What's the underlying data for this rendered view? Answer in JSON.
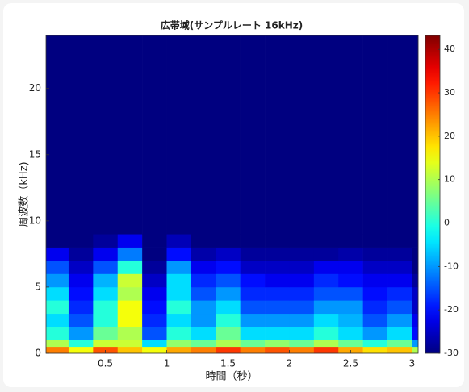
{
  "chart_data": {
    "type": "heatmap",
    "title": "広帯域(サンプルレート 16kHz)",
    "x_label": "時間（秒）",
    "y_label": "周波数（kHz)",
    "xlim": [
      0.016,
      3.05
    ],
    "ylim": [
      0,
      24
    ],
    "xticks": [
      0.5,
      1,
      1.5,
      2,
      2.5,
      3
    ],
    "yticks": [
      0,
      5,
      10,
      15,
      20
    ],
    "clim": [
      -30,
      43.2
    ],
    "cticks": [
      -30,
      -20,
      -10,
      0,
      10,
      20,
      30,
      40
    ],
    "colormap": "jet",
    "x_edges": [
      0.016,
      0.2,
      0.4,
      0.6,
      0.8,
      1.0,
      1.2,
      1.4,
      1.6,
      1.8,
      2.0,
      2.2,
      2.4,
      2.6,
      2.8,
      3.0,
      3.05
    ],
    "y_edges": [
      0,
      0.5,
      1,
      2,
      3,
      4,
      5,
      6,
      7,
      8,
      9,
      24
    ],
    "z": [
      [
        25,
        15,
        28,
        20,
        15,
        22,
        25,
        30,
        25,
        28,
        25,
        30,
        22,
        18,
        20,
        10
      ],
      [
        10,
        0,
        12,
        12,
        -5,
        8,
        5,
        10,
        5,
        8,
        5,
        10,
        5,
        0,
        5,
        -10
      ],
      [
        0,
        -10,
        5,
        10,
        -15,
        0,
        -5,
        5,
        -5,
        -5,
        -5,
        0,
        -5,
        -10,
        -5,
        -20
      ],
      [
        -5,
        -15,
        0,
        15,
        -18,
        -5,
        -10,
        0,
        -10,
        -10,
        -10,
        -5,
        -8,
        -15,
        -10,
        -22
      ],
      [
        0,
        -18,
        0,
        15,
        -20,
        0,
        -10,
        -5,
        -15,
        -15,
        -15,
        -10,
        -10,
        -18,
        -15,
        -25
      ],
      [
        -5,
        -20,
        -5,
        10,
        -22,
        -5,
        -15,
        -10,
        -18,
        -18,
        -18,
        -15,
        -15,
        -20,
        -18,
        -25
      ],
      [
        -10,
        -22,
        -8,
        12,
        -25,
        -5,
        -18,
        -15,
        -20,
        -22,
        -22,
        -18,
        -20,
        -22,
        -22,
        -28
      ],
      [
        -15,
        -25,
        -15,
        0,
        -28,
        -10,
        -22,
        -20,
        -25,
        -25,
        -25,
        -22,
        -22,
        -25,
        -25,
        -30
      ],
      [
        -22,
        -28,
        -22,
        -12,
        -30,
        -20,
        -27,
        -25,
        -28,
        -28,
        -28,
        -28,
        -27,
        -28,
        -28,
        -30
      ],
      [
        -30,
        -30,
        -28,
        -22,
        -30,
        -26,
        -30,
        -30,
        -30,
        -30,
        -30,
        -30,
        -30,
        -30,
        -30,
        -30
      ],
      [
        -30,
        -30,
        -30,
        -30,
        -30,
        -30,
        -30,
        -30,
        -30,
        -30,
        -30,
        -30,
        -30,
        -30,
        -30,
        -30
      ]
    ]
  }
}
